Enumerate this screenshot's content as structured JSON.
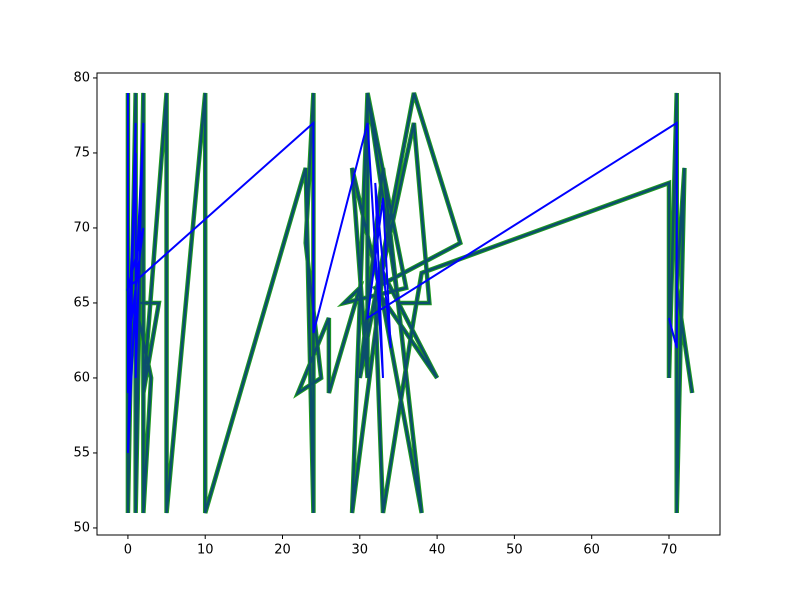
{
  "chart_data": {
    "type": "line",
    "xlim": [
      -4,
      76.6
    ],
    "ylim": [
      49.53,
      80.33
    ],
    "xticks": [
      0,
      10,
      20,
      30,
      40,
      50,
      60,
      70
    ],
    "yticks": [
      50,
      55,
      60,
      65,
      70,
      75,
      80
    ],
    "series": [
      {
        "color": "#0b4f6c",
        "edgecolor": "#1f9a1f",
        "x": [
          0,
          0,
          1,
          1,
          2,
          2,
          3,
          1,
          4,
          2,
          5,
          5,
          10,
          10,
          23,
          24,
          24,
          23,
          25,
          22,
          26,
          26,
          30,
          28,
          36,
          31,
          31,
          29,
          33,
          38,
          33,
          30,
          37,
          43,
          32,
          40,
          33,
          29,
          31,
          35,
          39,
          37,
          32,
          33,
          37,
          38,
          70,
          70,
          71,
          71,
          72,
          71,
          73
        ],
        "values": [
          79,
          51,
          79,
          51,
          79,
          51,
          60,
          65,
          65,
          59,
          79,
          51,
          79,
          51,
          74,
          51,
          79,
          69,
          60,
          59,
          64,
          59,
          66,
          65,
          66,
          79,
          60,
          74,
          65,
          51,
          74,
          60,
          79,
          69,
          66,
          60,
          67,
          51,
          79,
          65,
          65,
          77,
          65,
          51,
          64,
          67,
          73,
          60,
          79,
          51,
          74,
          66,
          59
        ]
      },
      {
        "color": "#0000ff",
        "x": [
          0,
          0,
          1,
          0,
          2,
          1,
          1,
          0,
          2,
          0,
          24,
          24,
          31,
          33,
          32,
          34,
          33,
          31,
          71,
          71,
          70
        ],
        "values": [
          79,
          59,
          77,
          55,
          77,
          60,
          75,
          62,
          70,
          66,
          77,
          63,
          77,
          60,
          73,
          62,
          72,
          64,
          77,
          62,
          64
        ]
      }
    ]
  }
}
